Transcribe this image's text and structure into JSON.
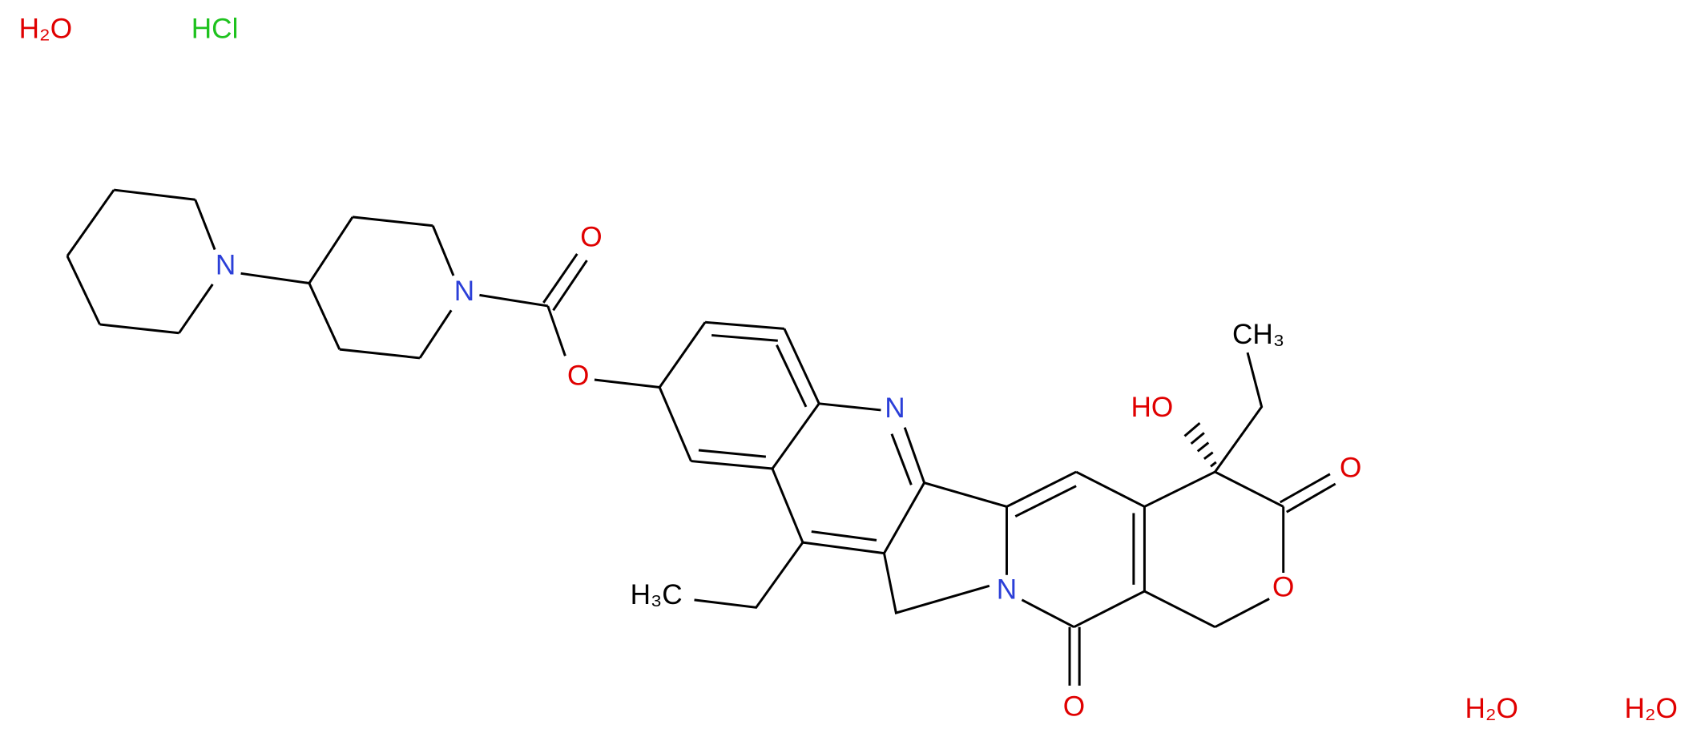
{
  "molecule": {
    "atoms": [
      "H₂O",
      "HCl",
      "N",
      "N",
      "O",
      "O",
      "N",
      "HO",
      "CH₃",
      "O",
      "O",
      "N",
      "O",
      "H₃C",
      "H₂O",
      "H₂O"
    ]
  }
}
